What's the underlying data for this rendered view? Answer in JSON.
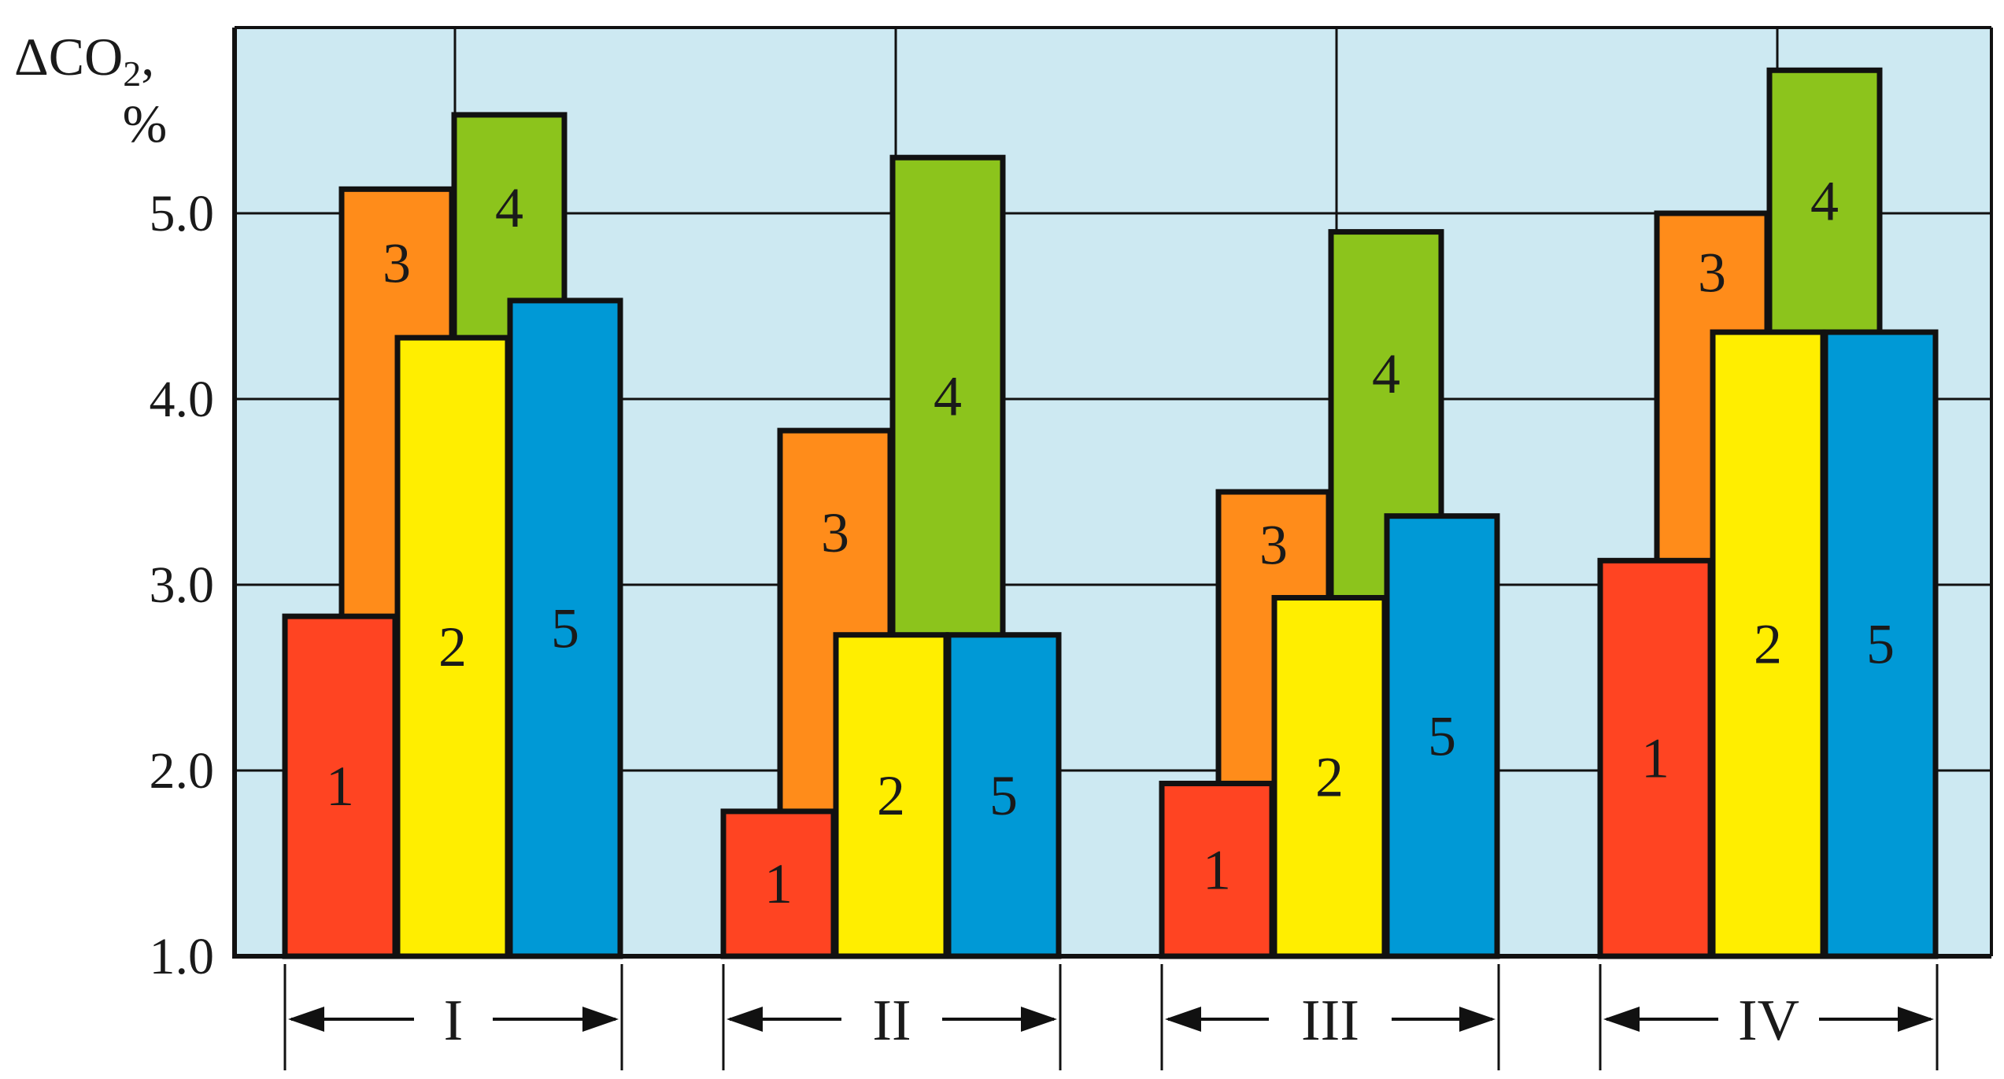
{
  "chart_data": {
    "type": "bar",
    "ylabel_line1": "ΔCO",
    "ylabel_sub": "2",
    "ylabel_comma": ",",
    "ylabel_line2": "%",
    "ylim": [
      1.0,
      5.9
    ],
    "yticks": [
      1.0,
      2.0,
      3.0,
      4.0,
      5.0
    ],
    "ytick_labels": [
      "1.0",
      "2.0",
      "3.0",
      "4.0",
      "5.0"
    ],
    "grid": true,
    "background_color": "#cde9f2",
    "groups": [
      {
        "label": "I",
        "back_bars": [
          {
            "label": "3",
            "value": 5.13,
            "color": "#ff8c1a"
          },
          {
            "label": "4",
            "value": 5.53,
            "color": "#8cc41c"
          }
        ],
        "front_bars": [
          {
            "label": "1",
            "value": 2.83,
            "color": "#ff4422"
          },
          {
            "label": "2",
            "value": 4.33,
            "color": "#ffee00"
          },
          {
            "label": "5",
            "value": 4.53,
            "color": "#0099d6"
          }
        ]
      },
      {
        "label": "II",
        "back_bars": [
          {
            "label": "3",
            "value": 3.83,
            "color": "#ff8c1a"
          },
          {
            "label": "4",
            "value": 5.3,
            "color": "#8cc41c"
          }
        ],
        "front_bars": [
          {
            "label": "1",
            "value": 1.78,
            "color": "#ff4422"
          },
          {
            "label": "2",
            "value": 2.73,
            "color": "#ffee00"
          },
          {
            "label": "5",
            "value": 2.73,
            "color": "#0099d6"
          }
        ]
      },
      {
        "label": "III",
        "back_bars": [
          {
            "label": "3",
            "value": 3.5,
            "color": "#ff8c1a"
          },
          {
            "label": "4",
            "value": 4.9,
            "color": "#8cc41c"
          }
        ],
        "front_bars": [
          {
            "label": "1",
            "value": 1.93,
            "color": "#ff4422"
          },
          {
            "label": "2",
            "value": 2.93,
            "color": "#ffee00"
          },
          {
            "label": "5",
            "value": 3.37,
            "color": "#0099d6"
          }
        ]
      },
      {
        "label": "IV",
        "back_bars": [
          {
            "label": "3",
            "value": 5.0,
            "color": "#ff8c1a"
          },
          {
            "label": "4",
            "value": 5.77,
            "color": "#8cc41c"
          }
        ],
        "front_bars": [
          {
            "label": "1",
            "value": 3.13,
            "color": "#ff4422"
          },
          {
            "label": "2",
            "value": 4.36,
            "color": "#ffee00"
          },
          {
            "label": "5",
            "value": 4.36,
            "color": "#0099d6"
          }
        ]
      }
    ]
  }
}
